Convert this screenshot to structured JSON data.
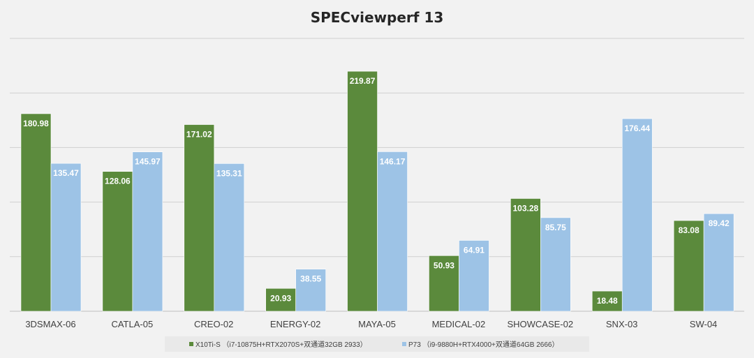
{
  "chart_data": {
    "type": "bar",
    "title": "SPECviewperf 13",
    "categories": [
      "3DSMAX-06",
      "CATLA-05",
      "CREO-02",
      "ENERGY-02",
      "MAYA-05",
      "MEDICAL-02",
      "SHOWCASE-02",
      "SNX-03",
      "SW-04"
    ],
    "series": [
      {
        "name": "X10Ti-S （i7-10875H+RTX2070S+双通道32GB 2933）",
        "color": "#5b8a3c",
        "values": [
          180.98,
          128.06,
          171.02,
          20.93,
          219.87,
          50.93,
          103.28,
          18.48,
          83.08
        ]
      },
      {
        "name": "P73 （i9-9880H+RTX4000+双通道64GB 2666）",
        "color": "#9dc3e6",
        "values": [
          135.47,
          145.97,
          135.31,
          38.55,
          146.17,
          64.91,
          85.75,
          176.44,
          89.42
        ]
      }
    ],
    "ylim": [
      0,
      250
    ],
    "gridlines": [
      0,
      50,
      100,
      150,
      200,
      250
    ],
    "grid": true,
    "y_tick_labels_shown": false,
    "legend_position": "bottom"
  }
}
